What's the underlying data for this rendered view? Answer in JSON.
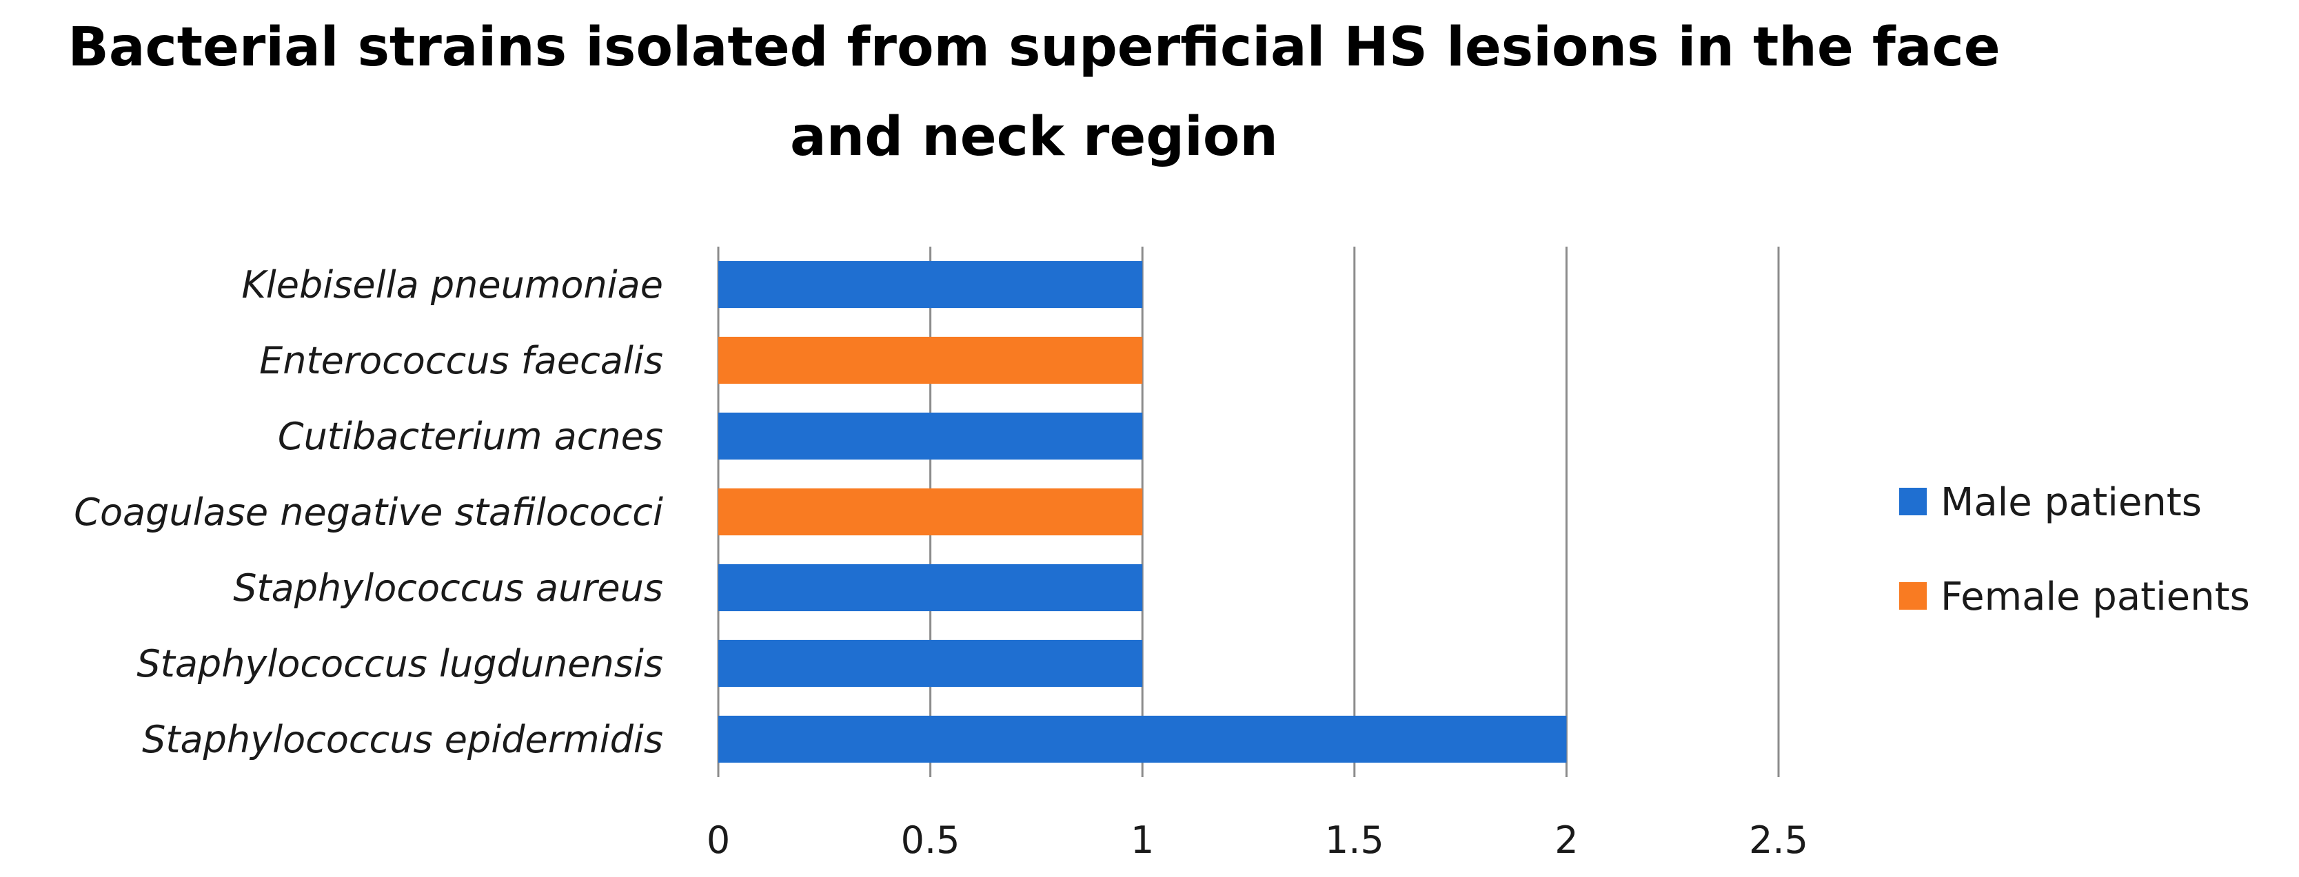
{
  "chart_data": {
    "type": "bar",
    "orientation": "horizontal",
    "title_lines": [
      "Bacterial strains isolated from superficial HS lesions in the face",
      "and neck region"
    ],
    "categories": [
      "Klebisella pneumoniae",
      "Enterococcus faecalis",
      "Cutibacterium acnes",
      "Coagulase negative stafilococci",
      "Staphylococcus aureus",
      "Staphylococcus lugdunensis",
      "Staphylococcus epidermidis"
    ],
    "values": [
      1,
      1,
      1,
      1,
      1,
      1,
      2
    ],
    "bar_series": [
      "Male patients",
      "Female patients",
      "Male patients",
      "Female patients",
      "Male patients",
      "Male patients",
      "Male patients"
    ],
    "series": [
      {
        "name": "Male patients",
        "color": "#1f6fd1"
      },
      {
        "name": "Female patients",
        "color": "#f97b22"
      }
    ],
    "xlim": [
      0,
      2.5
    ],
    "xticks": [
      0,
      0.5,
      1,
      1.5,
      2,
      2.5
    ],
    "xtick_labels": [
      "0",
      "0.5",
      "1",
      "1.5",
      "2",
      "2.5"
    ],
    "grid": "vertical",
    "legend_position": "right"
  }
}
